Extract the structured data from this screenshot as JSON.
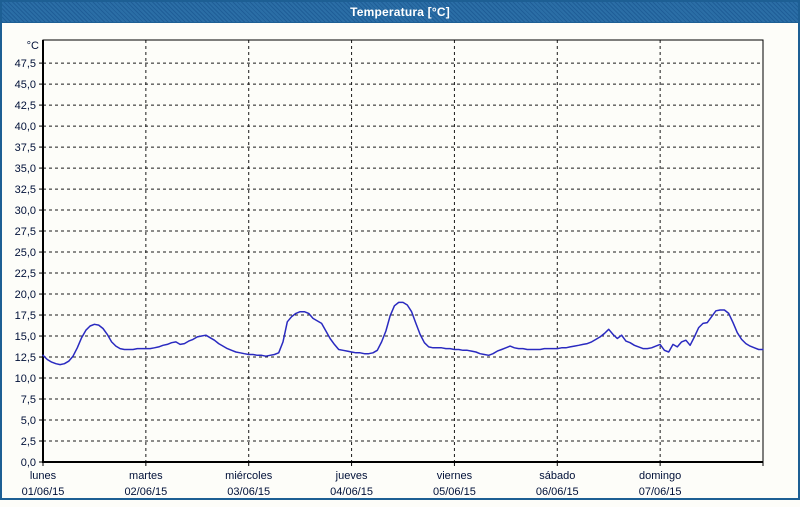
{
  "window": {
    "title": "Temperatura [°C]"
  },
  "colors": {
    "titlebar_bg": "#2268a2",
    "window_border": "#1d5f94",
    "title_text": "#ffffff",
    "plot_border": "#000000",
    "grid": "#1a1a1a",
    "axis_label": "#001038",
    "line": "#2a2ac0",
    "background": "#fdfdf9"
  },
  "chart_data": {
    "type": "line",
    "title": "Temperatura [°C]",
    "unit_label": "°C",
    "y_axis": {
      "min": 0,
      "max": 50.25,
      "tick_step": 2.5,
      "tick_labels": [
        "0,0",
        "2,5",
        "5,0",
        "7,5",
        "10,0",
        "12,5",
        "15,0",
        "17,5",
        "20,0",
        "22,5",
        "25,0",
        "27,5",
        "30,0",
        "32,5",
        "35,0",
        "37,5",
        "40,0",
        "42,5",
        "45,0",
        "47,5"
      ],
      "grid_style": "dashed"
    },
    "x_axis": {
      "days": [
        {
          "name": "lunes",
          "date": "01/06/15"
        },
        {
          "name": "martes",
          "date": "02/06/15"
        },
        {
          "name": "miércoles",
          "date": "03/06/15"
        },
        {
          "name": "jueves",
          "date": "04/06/15"
        },
        {
          "name": "viernes",
          "date": "05/06/15"
        },
        {
          "name": "sábado",
          "date": "06/06/15"
        },
        {
          "name": "domingo",
          "date": "07/06/15"
        }
      ],
      "samples_per_day": 24,
      "grid_style": "dashed vertical lines at day boundaries"
    },
    "legend": "none",
    "series": [
      {
        "name": "Temperatura",
        "unit": "°C",
        "sampling": "hourly, Monday 00:00 through Sunday 24:00",
        "values": [
          12.7,
          12.2,
          11.9,
          11.7,
          11.6,
          11.7,
          12.0,
          12.6,
          13.6,
          14.8,
          15.7,
          16.2,
          16.4,
          16.3,
          15.9,
          15.2,
          14.3,
          13.8,
          13.5,
          13.4,
          13.4,
          13.4,
          13.5,
          13.5,
          13.5,
          13.5,
          13.6,
          13.7,
          13.9,
          14.0,
          14.2,
          14.3,
          14.0,
          14.1,
          14.4,
          14.6,
          14.9,
          15.0,
          15.1,
          14.8,
          14.5,
          14.1,
          13.8,
          13.5,
          13.3,
          13.1,
          13.0,
          12.9,
          12.8,
          12.8,
          12.7,
          12.7,
          12.6,
          12.7,
          12.8,
          13.0,
          14.3,
          16.7,
          17.3,
          17.7,
          17.9,
          17.9,
          17.7,
          17.1,
          16.8,
          16.5,
          15.6,
          14.7,
          14.0,
          13.4,
          13.3,
          13.2,
          13.1,
          13.0,
          13.0,
          12.9,
          12.9,
          13.0,
          13.3,
          14.3,
          15.6,
          17.4,
          18.6,
          19.0,
          19.0,
          18.7,
          17.9,
          16.5,
          15.2,
          14.2,
          13.7,
          13.6,
          13.6,
          13.6,
          13.5,
          13.5,
          13.4,
          13.4,
          13.3,
          13.3,
          13.2,
          13.1,
          12.9,
          12.8,
          12.7,
          12.9,
          13.2,
          13.4,
          13.6,
          13.8,
          13.6,
          13.5,
          13.5,
          13.4,
          13.4,
          13.4,
          13.4,
          13.5,
          13.5,
          13.5,
          13.5,
          13.6,
          13.6,
          13.7,
          13.8,
          13.9,
          14.0,
          14.1,
          14.3,
          14.6,
          14.9,
          15.3,
          15.8,
          15.2,
          14.7,
          15.1,
          14.4,
          14.2,
          13.9,
          13.7,
          13.5,
          13.5,
          13.6,
          13.8,
          14.0,
          13.3,
          13.1,
          14.0,
          13.7,
          14.3,
          14.5,
          13.9,
          14.9,
          16.0,
          16.5,
          16.6,
          17.3,
          18.0,
          18.1,
          18.1,
          17.7,
          16.6,
          15.4,
          14.6,
          14.1,
          13.8,
          13.6,
          13.4,
          13.4
        ]
      }
    ]
  }
}
